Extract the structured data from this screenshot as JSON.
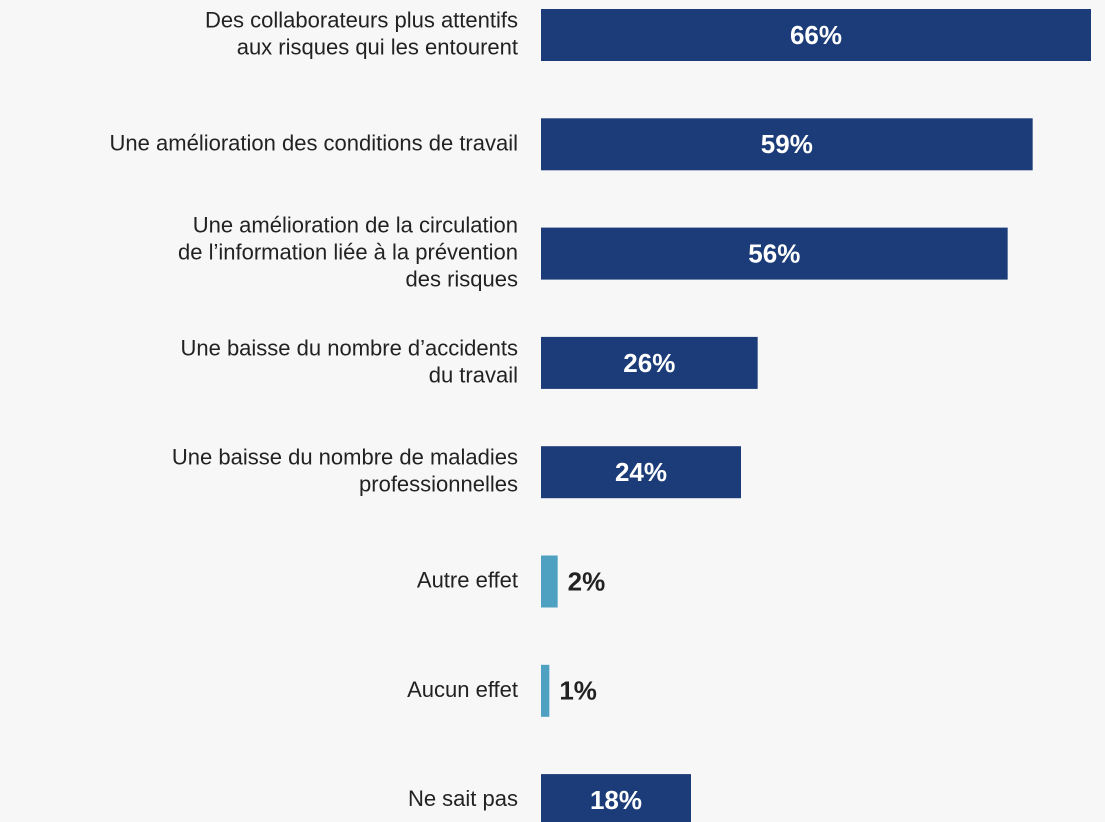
{
  "chart_data": {
    "type": "bar",
    "categories": [
      "Des collaborateurs plus attentifs\naux risques qui les entourent",
      "Une amélioration des conditions de travail",
      "Une amélioration de la circulation\nde l’information liée à la prévention\ndes risques",
      "Une baisse du nombre d’accidents\ndu travail",
      "Une baisse du nombre de maladies\nprofessionnelles",
      "Autre effet",
      "Aucun effet",
      "Ne sait pas"
    ],
    "values": [
      66,
      59,
      56,
      26,
      24,
      2,
      1,
      18
    ],
    "value_labels": [
      "66%",
      "59%",
      "56%",
      "26%",
      "24%",
      "2%",
      "1%",
      "18%"
    ],
    "colors": [
      "#1b3c78",
      "#1b3c78",
      "#1b3c78",
      "#1b3c78",
      "#1b3c78",
      "#4fa1c2",
      "#4fa1c2",
      "#1b3c78"
    ]
  }
}
